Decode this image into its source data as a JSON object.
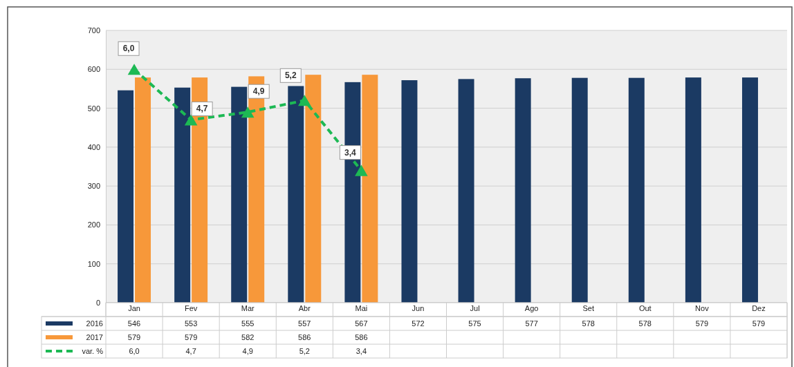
{
  "chart_data": {
    "type": "bar",
    "categories": [
      "Jan",
      "Fev",
      "Mar",
      "Abr",
      "Mai",
      "Jun",
      "Jul",
      "Ago",
      "Set",
      "Out",
      "Nov",
      "Dez"
    ],
    "series": [
      {
        "name": "2016",
        "color": "#1b3a63",
        "values": [
          546,
          553,
          555,
          557,
          567,
          572,
          575,
          577,
          578,
          578,
          579,
          579
        ],
        "value_labels": [
          "546",
          "553",
          "555",
          "557",
          "567",
          "572",
          "575",
          "577",
          "578",
          "578",
          "579",
          "579"
        ]
      },
      {
        "name": "2017",
        "color": "#f7983a",
        "values": [
          579,
          579,
          582,
          586,
          586,
          null,
          null,
          null,
          null,
          null,
          null,
          null
        ],
        "value_labels": [
          "579",
          "579",
          "582",
          "586",
          "586",
          null,
          null,
          null,
          null,
          null,
          null,
          null
        ]
      },
      {
        "name": "var. %",
        "type": "line",
        "axis": "y2",
        "color": "#1db954",
        "values": [
          6.0,
          4.7,
          4.9,
          5.2,
          3.4,
          null,
          null,
          null,
          null,
          null,
          null,
          null
        ],
        "value_labels": [
          "6,0",
          "4,7",
          "4,9",
          "5,2",
          "3,4",
          null,
          null,
          null,
          null,
          null,
          null,
          null
        ]
      }
    ],
    "ylim": [
      0,
      700
    ],
    "yticks": [
      0,
      100,
      200,
      300,
      400,
      500,
      600,
      700
    ],
    "y2lim": [
      0,
      7
    ],
    "grid": "y",
    "legend": "bottom",
    "marker": "triangle",
    "line_style": "dashed",
    "tick_labels": "xy"
  }
}
